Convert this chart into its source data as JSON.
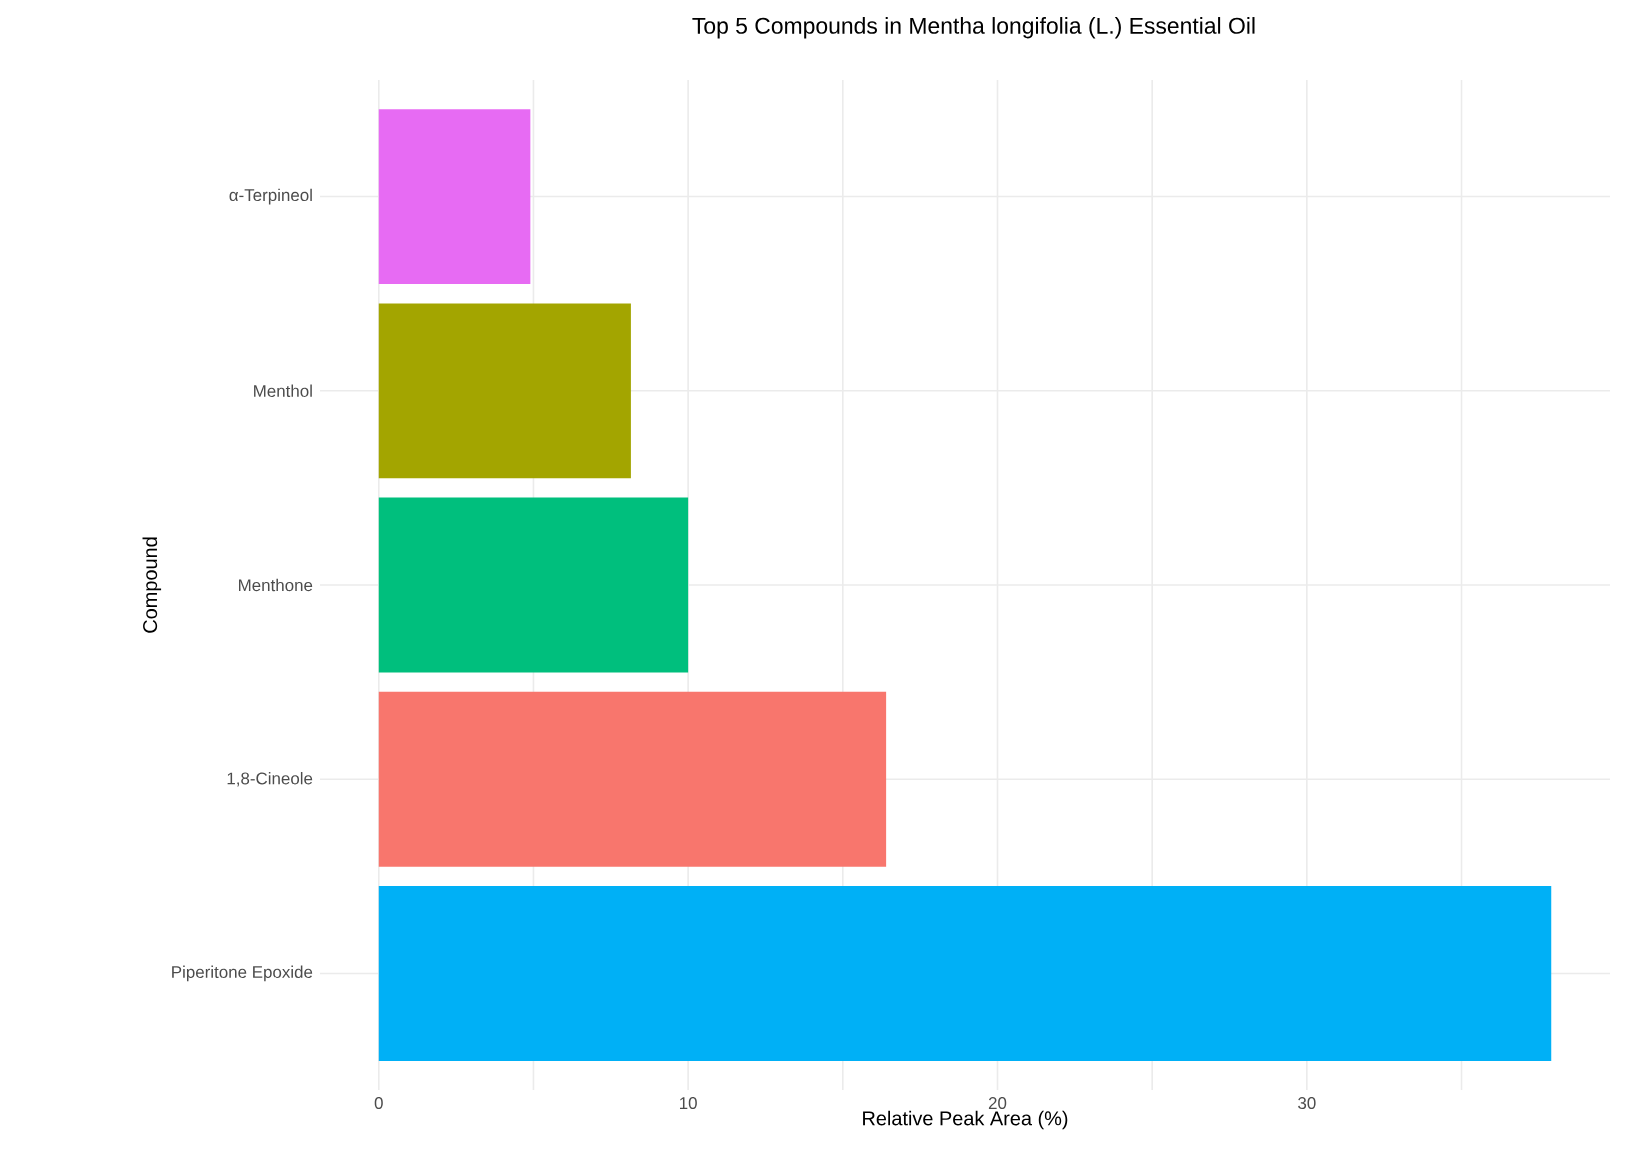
{
  "chart_data": {
    "type": "bar",
    "orientation": "horizontal",
    "title": "Top 5 Compounds in Mentha longifolia (L.) Essential Oil",
    "xlabel": "Relative Peak Area (%)",
    "ylabel": "Compound",
    "categories": [
      "α-Terpineol",
      "Menthol",
      "Menthone",
      "1,8-Cineole",
      "Piperitone Epoxide"
    ],
    "values": [
      4.9,
      8.15,
      10.0,
      16.4,
      37.9
    ],
    "colors": [
      "#e76bf3",
      "#a3a500",
      "#00bf7d",
      "#f8766d",
      "#00b0f6"
    ],
    "xlim": [
      -1.9,
      39.8
    ],
    "xticks": [
      0,
      {
        "value": 5,
        "label": null
      },
      10,
      {
        "value": 15,
        "label": null
      },
      20,
      {
        "value": 25,
        "label": null
      },
      30,
      {
        "value": 35,
        "label": null
      }
    ],
    "grid": true
  }
}
